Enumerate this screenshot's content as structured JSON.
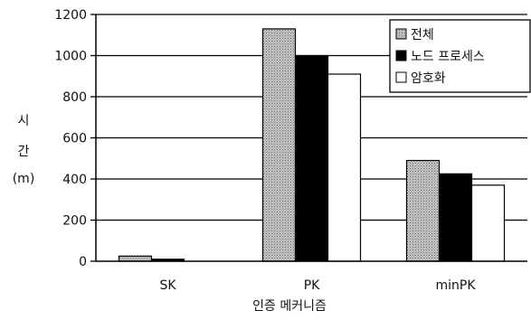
{
  "chart_data": {
    "type": "bar",
    "title": "",
    "xlabel": "인증 메커니즘",
    "ylabel_lines": [
      "시",
      "간",
      "(m)"
    ],
    "categories": [
      "SK",
      "PK",
      "minPK"
    ],
    "ylim": [
      0,
      1200
    ],
    "yticks": [
      0,
      200,
      400,
      600,
      800,
      1000,
      1200
    ],
    "grid": true,
    "legend_position": "top-right",
    "series": [
      {
        "name": "전체",
        "values": [
          25,
          1130,
          490
        ],
        "fill": "#b8b8b8",
        "pattern": "dotted"
      },
      {
        "name": "노드 프로세스",
        "values": [
          10,
          1000,
          425
        ],
        "fill": "#000000",
        "pattern": "solid"
      },
      {
        "name": "암호화",
        "values": [
          0,
          910,
          370
        ],
        "fill": "#ffffff",
        "pattern": "solid"
      }
    ]
  }
}
